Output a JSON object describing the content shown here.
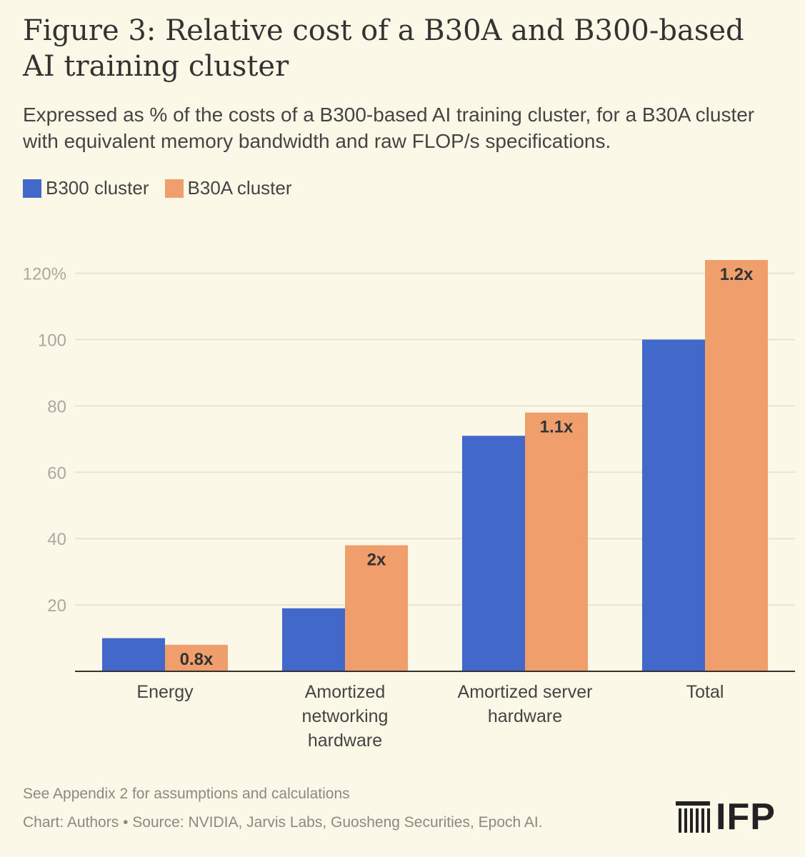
{
  "title": "Figure 3: Relative cost of a B30A and B300-based AI training cluster",
  "subtitle": "Expressed as % of the costs of a B300-based AI training cluster, for a B30A cluster with equivalent memory bandwidth and raw FLOP/s specifications.",
  "colors": {
    "b300": "#4268c9",
    "b30a": "#f09e6c",
    "grid": "#e8e4d4",
    "axis": "#333333"
  },
  "footnote": "See Appendix 2 for assumptions and calculations",
  "credit": "Chart: Authors • Source: NVIDIA, Jarvis Labs, Guosheng Securities, Epoch AI.",
  "logo": {
    "text": "IFP",
    "icon": "ifp-columns-icon"
  },
  "chart_data": {
    "type": "bar",
    "title": "Figure 3: Relative cost of a B30A and B300-based AI training cluster",
    "categories": [
      [
        "Energy"
      ],
      [
        "Amortized",
        "networking",
        "hardware"
      ],
      [
        "Amortized server",
        "hardware"
      ],
      [
        "Total"
      ]
    ],
    "series": [
      {
        "name": "B300 cluster",
        "values": [
          10,
          19,
          71,
          100
        ]
      },
      {
        "name": "B30A cluster",
        "values": [
          8,
          38,
          78,
          124
        ],
        "labels": [
          "0.8x",
          "2x",
          "1.1x",
          "1.2x"
        ]
      }
    ],
    "yticks": [
      20,
      40,
      60,
      80,
      100,
      120
    ],
    "ytick_labels": [
      "20",
      "40",
      "60",
      "80",
      "100",
      "120%"
    ],
    "ylim": [
      0,
      124
    ],
    "xlabel": "",
    "ylabel": "",
    "legend": "top-left",
    "grid": true
  }
}
